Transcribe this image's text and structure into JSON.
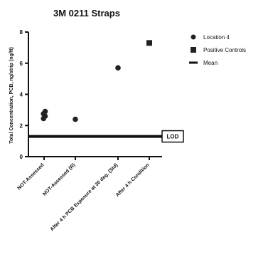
{
  "chart_data": {
    "type": "scatter",
    "title": "3M 0211 Straps",
    "ylabel": "Total Concentration, PCB, ng/strip (ng/ft)",
    "xlabel": "",
    "ylim": [
      0,
      8
    ],
    "yticks": [
      0,
      2,
      4,
      6,
      8
    ],
    "categories": [
      "NOT-Assessed",
      "NOT-Assessed (R)",
      "After 4 h PCB Exposure at 30 deg. (Std)",
      "After 4 h Condition"
    ],
    "series": [
      {
        "name": "Location 4",
        "marker": "circle",
        "points": [
          {
            "category": 0,
            "y": 2.9
          },
          {
            "category": 0,
            "y": 2.75
          },
          {
            "category": 0,
            "y": 2.6
          },
          {
            "category": 0,
            "y": 2.45
          },
          {
            "category": 1,
            "y": 2.4
          },
          {
            "category": 2,
            "y": 5.7
          }
        ]
      },
      {
        "name": "Positive Controls",
        "marker": "square",
        "points": [
          {
            "category": 3,
            "y": 7.3
          }
        ]
      }
    ],
    "reference_lines": [
      {
        "name": "Mean",
        "label": "LOD",
        "y": 1.3
      }
    ],
    "legend_position": "right",
    "grid": false
  },
  "colors": {
    "marker": "#222222",
    "axis": "#111111",
    "background": "#ffffff"
  }
}
